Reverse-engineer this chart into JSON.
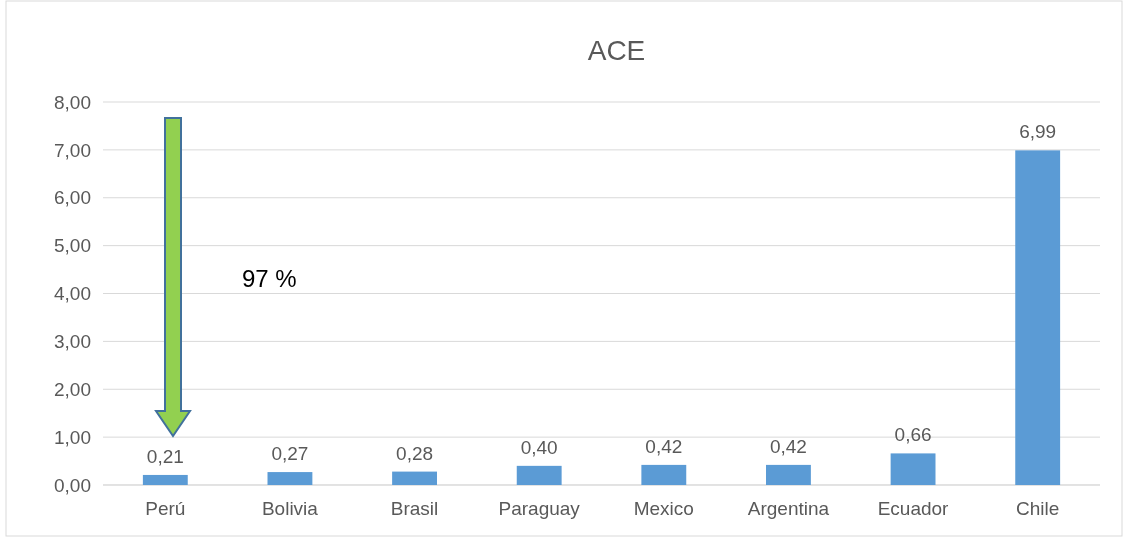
{
  "chart_data": {
    "type": "bar",
    "title": "ACE",
    "categories": [
      "Perú",
      "Bolivia",
      "Brasil",
      "Paraguay",
      "Mexico",
      "Argentina",
      "Ecuador",
      "Chile"
    ],
    "values": [
      0.21,
      0.27,
      0.28,
      0.4,
      0.42,
      0.42,
      0.66,
      6.99
    ],
    "value_labels": [
      "0,21",
      "0,27",
      "0,28",
      "0,40",
      "0,42",
      "0,42",
      "0,66",
      "6,99"
    ],
    "color": "#5b9bd5",
    "ylim": [
      0,
      8
    ],
    "yticks": [
      {
        "value": 0,
        "label": "0,00"
      },
      {
        "value": 1,
        "label": "1,00"
      },
      {
        "value": 2,
        "label": "2,00"
      },
      {
        "value": 3,
        "label": "3,00"
      },
      {
        "value": 4,
        "label": "4,00"
      },
      {
        "value": 5,
        "label": "5,00"
      },
      {
        "value": 6,
        "label": "6,00"
      },
      {
        "value": 7,
        "label": "7,00"
      },
      {
        "value": 8,
        "label": "8,00"
      }
    ],
    "grid": "y",
    "annotations": [
      "97 %"
    ]
  }
}
